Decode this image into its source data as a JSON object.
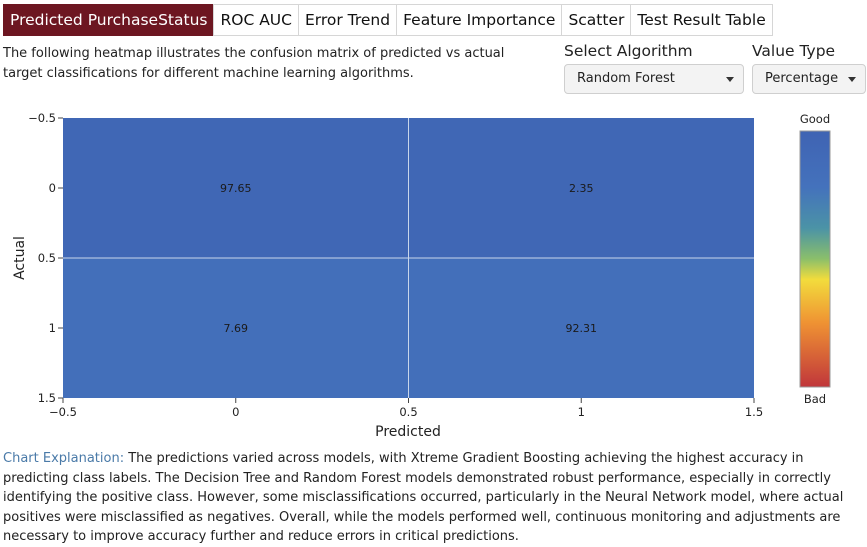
{
  "tabs": [
    {
      "label": "Predicted PurchaseStatus",
      "active": true
    },
    {
      "label": "ROC AUC",
      "active": false
    },
    {
      "label": "Error Trend",
      "active": false
    },
    {
      "label": "Feature Importance",
      "active": false
    },
    {
      "label": "Scatter",
      "active": false
    },
    {
      "label": "Test Result Table",
      "active": false
    }
  ],
  "description": "The following heatmap illustrates the confusion matrix of predicted vs actual target classifications for different machine learning algorithms.",
  "controls": {
    "algorithm_label": "Select Algorithm",
    "algorithm_value": "Random Forest",
    "value_type_label": "Value Type",
    "value_type_value": "Percentage"
  },
  "chart_data": {
    "type": "heatmap",
    "xlabel": "Predicted",
    "ylabel": "Actual",
    "x_categories": [
      0,
      1
    ],
    "y_categories": [
      0,
      1
    ],
    "values": [
      [
        97.65,
        2.35
      ],
      [
        7.69,
        92.31
      ]
    ],
    "x_ticks": [
      "−0.5",
      "0",
      "0.5",
      "1",
      "1.5"
    ],
    "y_ticks": [
      "−0.5",
      "0",
      "0.5",
      "1",
      "1.5"
    ],
    "xlim": [
      -0.5,
      1.5
    ],
    "ylim": [
      1.5,
      -0.5
    ],
    "colorscale_top_label": "Good",
    "colorscale_bottom_label": "Bad",
    "colors": {
      "good": "#3f63b3",
      "mid": "#f2dc3c",
      "bad": "#c0363b"
    },
    "grid": true
  },
  "explanation": {
    "lead": "Chart Explanation:",
    "text": " The predictions varied across models, with Xtreme Gradient Boosting achieving the highest accuracy in predicting class labels. The Decision Tree and Random Forest models demonstrated robust performance, especially in correctly identifying the positive class. However, some misclassifications occurred, particularly in the Neural Network model, where actual positives were misclassified as negatives. Overall, while the models performed well, continuous monitoring and adjustments are necessary to improve accuracy further and reduce errors in critical predictions."
  }
}
